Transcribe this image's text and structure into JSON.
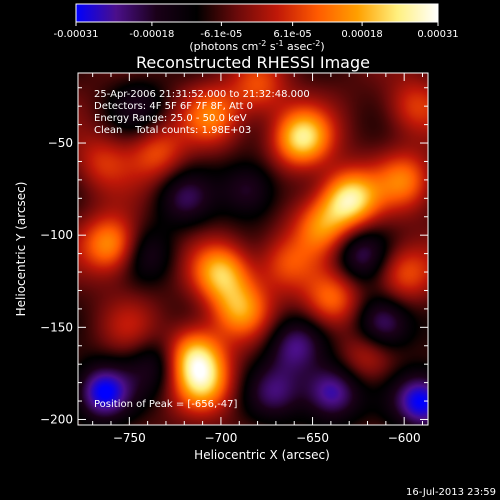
{
  "colorbar": {
    "tick_labels": [
      "-0.00031",
      "-0.00018",
      "-6.1e-05",
      "6.1e-05",
      "0.00018",
      "0.00031"
    ],
    "tick_values": [
      -0.00031,
      -0.00018,
      -6.1e-05,
      6.1e-05,
      0.00018,
      0.00031
    ],
    "range": [
      -0.00031,
      0.00031
    ],
    "units_prefix": "(photons cm",
    "units_sup1": "-2",
    "units_mid": " s",
    "units_sup2": "-1",
    "units_suffix": " asec",
    "units_sup3": "-2",
    "units_close": ")",
    "colors": [
      "#0000ff",
      "#4b0f8a",
      "#1a0018",
      "#000000",
      "#6a0a0a",
      "#c01808",
      "#ff5a00",
      "#ffa000",
      "#fff080",
      "#ffffff"
    ]
  },
  "chart_data": {
    "type": "heatmap",
    "title": "Reconstructed RHESSI Image",
    "xlabel": "Heliocentric X (arcsec)",
    "ylabel": "Heliocentric Y (arcsec)",
    "xlim": [
      -778,
      -587
    ],
    "ylim": [
      -203,
      -12
    ],
    "x_ticks": [
      -750,
      -700,
      -650,
      -600
    ],
    "y_ticks": [
      -50,
      -100,
      -150,
      -200
    ],
    "x_tick_labels": [
      "−750",
      "−700",
      "−650",
      "−600"
    ],
    "y_tick_labels": [
      "−50",
      "−100",
      "−150",
      "−200"
    ],
    "info_lines": [
      "25-Apr-2006 21:31:52.000 to 21:32:48.000",
      "Detectors: 4F 5F 6F 7F 8F, Att 0",
      "Energy Range: 25.0 - 50.0 keV",
      "Clean    Total counts: 1.98E+03"
    ],
    "peak_label": "Position of Peak = [-656,-47]",
    "peak_position": [
      -656,
      -47
    ],
    "blobs": [
      {
        "x": -656,
        "y": -47,
        "v": 0.95
      },
      {
        "x": -630,
        "y": -80,
        "v": 1.0
      },
      {
        "x": -645,
        "y": -95,
        "v": 0.6
      },
      {
        "x": -705,
        "y": -35,
        "v": 0.55
      },
      {
        "x": -735,
        "y": -55,
        "v": 0.45
      },
      {
        "x": -760,
        "y": -105,
        "v": 0.75
      },
      {
        "x": -765,
        "y": -60,
        "v": 0.35
      },
      {
        "x": -700,
        "y": -120,
        "v": 0.8
      },
      {
        "x": -690,
        "y": -140,
        "v": 0.65
      },
      {
        "x": -715,
        "y": -165,
        "v": 0.85
      },
      {
        "x": -710,
        "y": -180,
        "v": 0.7
      },
      {
        "x": -665,
        "y": -115,
        "v": 0.45
      },
      {
        "x": -640,
        "y": -135,
        "v": 0.6
      },
      {
        "x": -600,
        "y": -120,
        "v": 0.5
      },
      {
        "x": -600,
        "y": -70,
        "v": 0.55
      },
      {
        "x": -595,
        "y": -30,
        "v": 0.4
      },
      {
        "x": -680,
        "y": -20,
        "v": 0.45
      },
      {
        "x": -620,
        "y": -165,
        "v": 0.35
      },
      {
        "x": -750,
        "y": -150,
        "v": 0.2
      },
      {
        "x": -740,
        "y": -110,
        "v": -0.35
      },
      {
        "x": -685,
        "y": -75,
        "v": -0.5
      },
      {
        "x": -660,
        "y": -160,
        "v": -0.55
      },
      {
        "x": -612,
        "y": -148,
        "v": -0.7
      },
      {
        "x": -590,
        "y": -190,
        "v": -0.85
      },
      {
        "x": -765,
        "y": -185,
        "v": -0.8
      },
      {
        "x": -735,
        "y": -170,
        "v": -0.4
      },
      {
        "x": -640,
        "y": -185,
        "v": -0.75
      },
      {
        "x": -625,
        "y": -110,
        "v": -0.5
      },
      {
        "x": -670,
        "y": -185,
        "v": -0.45
      },
      {
        "x": -720,
        "y": -80,
        "v": -0.4
      },
      {
        "x": -745,
        "y": -30,
        "v": -0.3
      }
    ]
  },
  "footer": {
    "timestamp": "16-Jul-2013 23:59"
  }
}
